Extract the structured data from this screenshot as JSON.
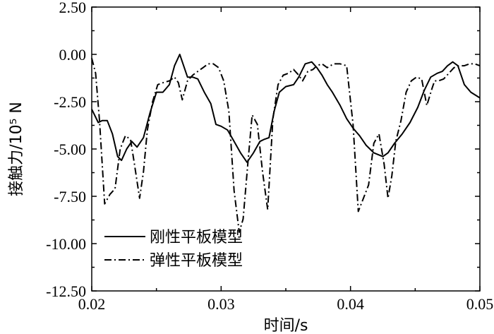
{
  "chart_data": {
    "type": "line",
    "xlabel": "时间/s",
    "ylabel": "接触力/10⁵ N",
    "xlim": [
      0.02,
      0.05
    ],
    "ylim": [
      -12.5,
      2.5
    ],
    "xticks": [
      "0.02",
      "0.03",
      "0.04",
      "0.05"
    ],
    "yticks": [
      "2.50",
      "0.00",
      "-2.50",
      "-5.00",
      "-7.50",
      "-10.00",
      "-12.50"
    ],
    "legend_position": "bottom-left",
    "series": [
      {
        "name": "刚性平板模型",
        "style": "solid",
        "color": "#000000",
        "x": [
          0.02,
          0.0205,
          0.0208,
          0.0212,
          0.0216,
          0.022,
          0.0223,
          0.0227,
          0.0231,
          0.0235,
          0.024,
          0.0245,
          0.025,
          0.0255,
          0.026,
          0.0264,
          0.0268,
          0.0271,
          0.0274,
          0.0278,
          0.0282,
          0.0287,
          0.0292,
          0.0296,
          0.03,
          0.0305,
          0.031,
          0.0315,
          0.032,
          0.0325,
          0.033,
          0.0333,
          0.0337,
          0.0341,
          0.0345,
          0.035,
          0.0356,
          0.036,
          0.0365,
          0.037,
          0.0374,
          0.0378,
          0.0382,
          0.0386,
          0.0392,
          0.0397,
          0.0402,
          0.0407,
          0.0412,
          0.0418,
          0.0425,
          0.0429,
          0.0434,
          0.044,
          0.0446,
          0.0452,
          0.0457,
          0.0462,
          0.0467,
          0.0471,
          0.0475,
          0.0479,
          0.0483,
          0.0488,
          0.0493,
          0.05
        ],
        "y": [
          -2.9,
          -3.6,
          -3.5,
          -3.5,
          -4.2,
          -5.4,
          -5.6,
          -5.0,
          -4.6,
          -4.9,
          -4.4,
          -3.1,
          -2.0,
          -2.0,
          -1.6,
          -0.6,
          0.0,
          -0.6,
          -1.2,
          -1.2,
          -1.3,
          -2.0,
          -2.6,
          -3.7,
          -3.8,
          -4.0,
          -4.6,
          -5.2,
          -5.7,
          -5.2,
          -4.6,
          -4.5,
          -4.4,
          -3.0,
          -2.0,
          -1.7,
          -1.6,
          -1.2,
          -0.5,
          -0.4,
          -0.7,
          -1.1,
          -1.6,
          -2.0,
          -2.7,
          -3.4,
          -3.9,
          -4.3,
          -4.8,
          -5.2,
          -5.4,
          -5.2,
          -4.7,
          -4.2,
          -3.6,
          -2.8,
          -1.9,
          -1.2,
          -1.0,
          -0.9,
          -0.6,
          -0.4,
          -0.6,
          -1.6,
          -2.0,
          -2.3
        ]
      },
      {
        "name": "弹性平板模型",
        "style": "dashdot",
        "color": "#000000",
        "x": [
          0.02,
          0.0203,
          0.0206,
          0.021,
          0.0214,
          0.0218,
          0.0222,
          0.0226,
          0.023,
          0.0233,
          0.0237,
          0.024,
          0.0243,
          0.0247,
          0.0251,
          0.0255,
          0.026,
          0.0264,
          0.0267,
          0.027,
          0.0274,
          0.0278,
          0.0282,
          0.0286,
          0.029,
          0.0294,
          0.0298,
          0.0302,
          0.0306,
          0.031,
          0.0314,
          0.0317,
          0.0321,
          0.0324,
          0.0328,
          0.0332,
          0.0336,
          0.034,
          0.0344,
          0.0348,
          0.0352,
          0.0356,
          0.036,
          0.0363,
          0.0367,
          0.0371,
          0.0374,
          0.0378,
          0.0382,
          0.0387,
          0.0392,
          0.0397,
          0.0402,
          0.0406,
          0.041,
          0.0414,
          0.0418,
          0.0422,
          0.0426,
          0.0429,
          0.0432,
          0.0435,
          0.0439,
          0.0443,
          0.0447,
          0.0451,
          0.0455,
          0.0459,
          0.0463,
          0.0465,
          0.0468,
          0.0472,
          0.0476,
          0.048,
          0.0484,
          0.0488,
          0.0492,
          0.0496,
          0.05
        ],
        "y": [
          -0.2,
          -1.0,
          -3.5,
          -7.9,
          -7.4,
          -7.1,
          -5.0,
          -4.3,
          -4.5,
          -5.8,
          -7.6,
          -6.2,
          -4.0,
          -2.5,
          -1.6,
          -1.5,
          -1.4,
          -1.2,
          -1.5,
          -2.4,
          -1.4,
          -1.1,
          -0.9,
          -0.7,
          -0.5,
          -0.5,
          -0.7,
          -1.4,
          -3.0,
          -7.2,
          -9.4,
          -8.7,
          -5.5,
          -3.2,
          -3.7,
          -6.2,
          -8.2,
          -3.4,
          -1.6,
          -1.1,
          -1.0,
          -0.8,
          -1.1,
          -1.4,
          -0.9,
          -0.8,
          -0.6,
          -0.5,
          -0.7,
          -0.5,
          -0.5,
          -0.6,
          -3.7,
          -8.3,
          -7.6,
          -6.9,
          -4.7,
          -4.2,
          -5.8,
          -7.6,
          -6.4,
          -4.6,
          -3.5,
          -2.0,
          -1.4,
          -1.2,
          -1.3,
          -2.7,
          -1.8,
          -1.4,
          -1.4,
          -1.3,
          -1.0,
          -0.7,
          -0.6,
          -0.6,
          -0.5,
          -0.5,
          -0.6
        ]
      }
    ]
  }
}
